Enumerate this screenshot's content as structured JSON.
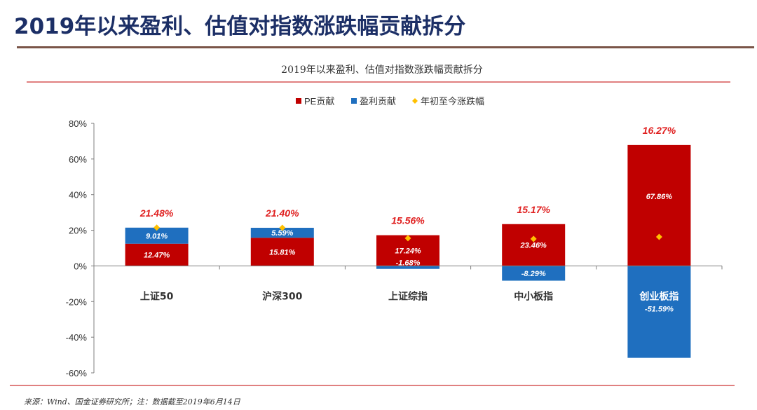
{
  "header": {
    "title": "2019年以来盈利、估值对指数涨跌幅贡献拆分"
  },
  "footer": {
    "source": "来源：Wind、国金证券研究所；注：数据截至2019年6月14日"
  },
  "colors": {
    "title": "#1c2f66",
    "rule": "#7a5548",
    "pe": "#c00000",
    "profit": "#1f6fbf",
    "change": "#ffc000",
    "change_label": "#e02020",
    "red_line": "#c00000"
  },
  "chart_data": {
    "type": "bar",
    "stacked": true,
    "title": "2019年以来盈利、估值对指数涨跌幅贡献拆分",
    "categories": [
      "上证50",
      "沪深300",
      "上证综指",
      "中小板指",
      "创业板指"
    ],
    "series": [
      {
        "name": "PE贡献",
        "kind": "bar",
        "values": [
          12.47,
          15.81,
          17.24,
          23.46,
          67.86
        ],
        "labels": [
          "12.47%",
          "15.81%",
          "17.24%",
          "23.46%",
          "67.86%"
        ]
      },
      {
        "name": "盈利贡献",
        "kind": "bar",
        "values": [
          9.01,
          5.59,
          -1.68,
          -8.29,
          -51.59
        ],
        "labels": [
          "9.01%",
          "5.59%",
          "-1.68%",
          "-8.29%",
          "-51.59%"
        ]
      },
      {
        "name": "年初至今涨跌幅",
        "kind": "marker",
        "values": [
          21.48,
          21.4,
          15.56,
          15.17,
          16.27
        ],
        "labels": [
          "21.48%",
          "21.40%",
          "15.56%",
          "15.17%",
          "16.27%"
        ]
      }
    ],
    "y_ticks": [
      80,
      60,
      40,
      20,
      0,
      -20,
      -40,
      -60
    ],
    "y_tick_labels": [
      "80%",
      "60%",
      "40%",
      "20%",
      "0%",
      "-20%",
      "-40%",
      "-60%"
    ],
    "ylim": [
      -60,
      80
    ],
    "legend_position": "top-center",
    "grid": false
  }
}
